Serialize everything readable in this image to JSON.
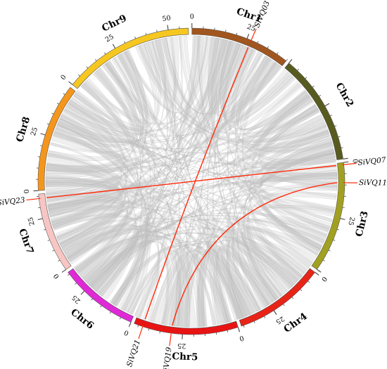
{
  "chart_data": {
    "type": "circos",
    "chromosomes": [
      {
        "name": "Chr1",
        "length": 45,
        "color": "#a0561e",
        "ticks": [
          "0",
          "25"
        ]
      },
      {
        "name": "Chr2",
        "length": 50,
        "color": "#575b1f",
        "ticks": []
      },
      {
        "name": "Chr3",
        "length": 50,
        "color": "#a2a020",
        "ticks": [
          "0",
          "25"
        ]
      },
      {
        "name": "Chr4",
        "length": 41,
        "color": "#e82418",
        "ticks": [
          "0",
          "25"
        ]
      },
      {
        "name": "Chr5",
        "length": 47,
        "color": "#e81414",
        "ticks": [
          "0",
          "25"
        ]
      },
      {
        "name": "Chr6",
        "length": 36,
        "color": "#e029d6",
        "ticks": [
          "0",
          "25"
        ]
      },
      {
        "name": "Chr7",
        "length": 36,
        "color": "#f7c6c3",
        "ticks": [
          "0",
          "25"
        ]
      },
      {
        "name": "Chr8",
        "length": 49,
        "color": "#f5961c",
        "ticks": [
          "0",
          "25"
        ]
      },
      {
        "name": "Chr9",
        "length": 59,
        "color": "#f6c720",
        "ticks": [
          "0",
          "25",
          "50"
        ]
      }
    ],
    "genes": [
      {
        "name": "SiVQ03",
        "chr": "Chr1",
        "pos": 27
      },
      {
        "name": "SiVQ07",
        "chr": "Chr3",
        "pos": 1
      },
      {
        "name": "SiVQ11",
        "chr": "Chr3",
        "pos": 9
      },
      {
        "name": "SiVQ19",
        "chr": "Chr5",
        "pos": 30
      },
      {
        "name": "SiVQ21",
        "chr": "Chr5",
        "pos": 43
      },
      {
        "name": "SiVQ23",
        "chr": "Chr7",
        "pos": 34
      }
    ],
    "highlight_links": [
      {
        "from": "SiVQ03",
        "to": "SiVQ21"
      },
      {
        "from": "SiVQ23",
        "to": "SiVQ07"
      },
      {
        "from": "SiVQ11",
        "to": "SiVQ19"
      }
    ],
    "colors": {
      "highlight": "#ff2a0a",
      "background_link": "#c8c8c8",
      "tick": "#333333"
    }
  }
}
